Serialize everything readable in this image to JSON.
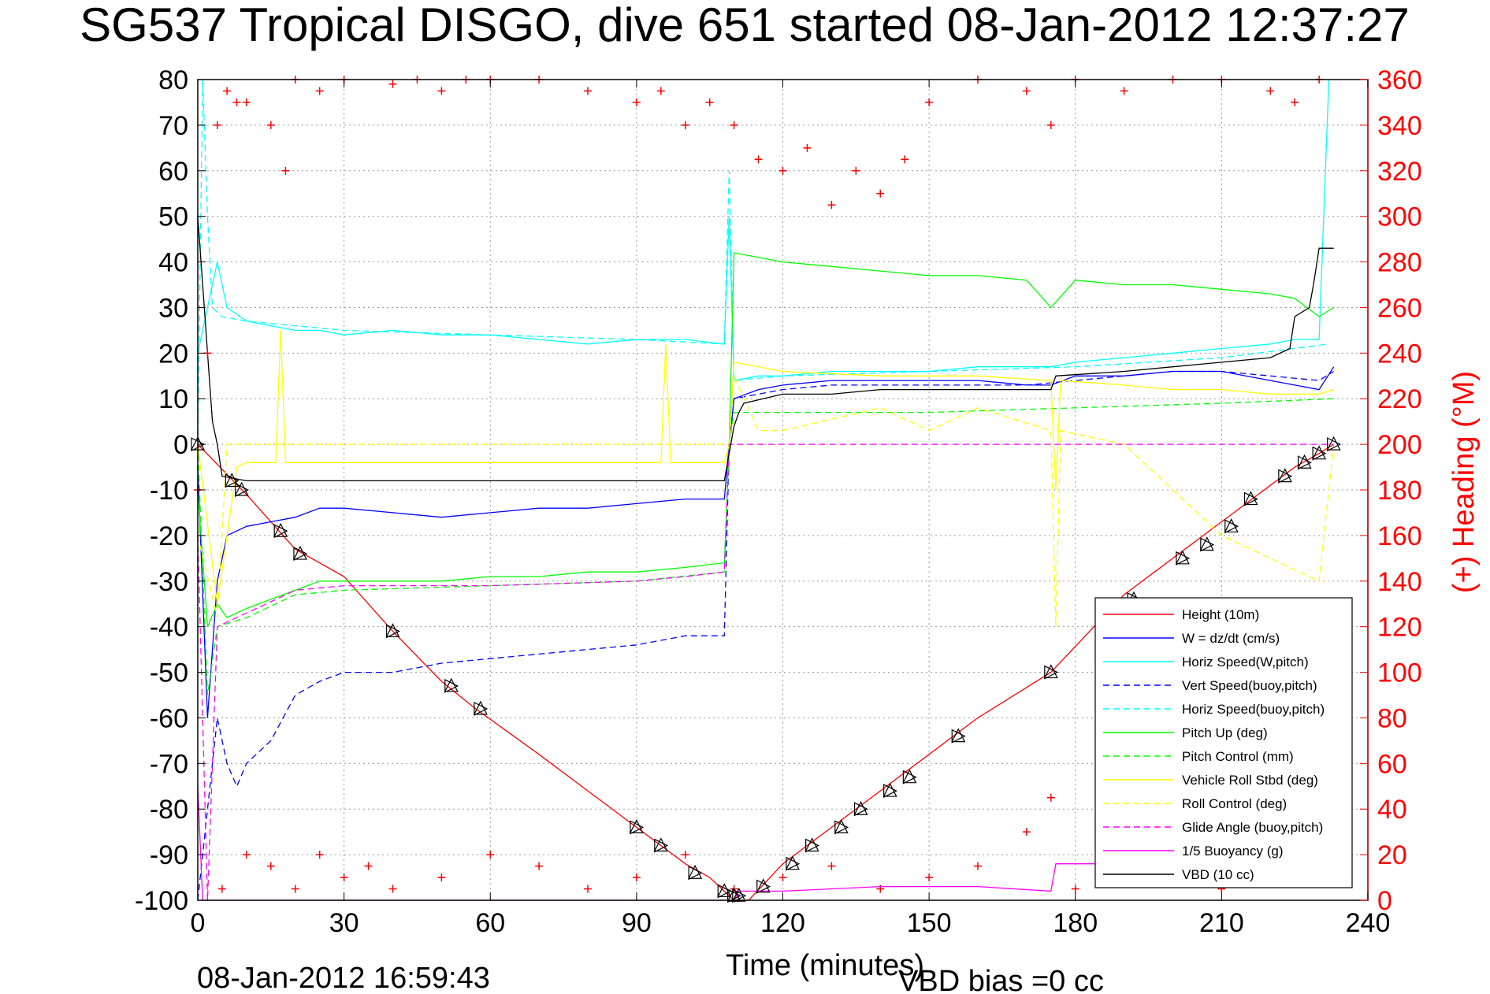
{
  "chart_data": {
    "type": "line",
    "title": "SG537 Tropical DISGO, dive 651 started 08-Jan-2012 12:37:27",
    "xlabel": "Time (minutes)",
    "ylabel_right": "(+) Heading (°M)",
    "xlim": [
      0,
      240
    ],
    "ylim": [
      -100,
      80
    ],
    "y2lim": [
      0,
      360
    ],
    "xticks": [
      "0",
      "30",
      "60",
      "90",
      "120",
      "150",
      "180",
      "210",
      "240"
    ],
    "yticks": [
      "80",
      "70",
      "60",
      "50",
      "40",
      "30",
      "20",
      "10",
      "0",
      "-10",
      "-20",
      "-30",
      "-40",
      "-50",
      "-60",
      "-70",
      "-80",
      "-90",
      "-100"
    ],
    "y2ticks": [
      "360",
      "340",
      "320",
      "300",
      "280",
      "260",
      "240",
      "220",
      "200",
      "180",
      "160",
      "140",
      "120",
      "100",
      "80",
      "60",
      "40",
      "20",
      "0"
    ],
    "grid": true,
    "legend_position": "lower-right",
    "footer_timestamp": "08-Jan-2012 16:59:43",
    "footer_vbd_bias": "VBD bias =0 cc",
    "series": [
      {
        "name": "Height (10m)",
        "color": "#ff0000",
        "style": "solid",
        "x": [
          0,
          10,
          20,
          30,
          40,
          50,
          57,
          70,
          80,
          90,
          100,
          105,
          108,
          110,
          113,
          120,
          130,
          140,
          150,
          160,
          175,
          190,
          200,
          210,
          220,
          225,
          230,
          233
        ],
        "y": [
          0,
          -11,
          -23,
          -29,
          -41,
          -52,
          -58,
          -68,
          -76,
          -84,
          -92,
          -95,
          -98,
          -100,
          -100,
          -92,
          -84,
          -76,
          -68,
          -60,
          -50,
          -33,
          -25,
          -17,
          -9,
          -5,
          -2,
          0
        ]
      },
      {
        "name": "W = dz/dt (cm/s)",
        "color": "#0000ff",
        "style": "solid",
        "x": [
          0,
          2,
          4,
          6,
          10,
          15,
          20,
          25,
          30,
          40,
          50,
          60,
          70,
          80,
          90,
          100,
          108,
          109,
          110,
          115,
          120,
          130,
          140,
          150,
          160,
          170,
          175,
          180,
          190,
          200,
          210,
          220,
          225,
          230,
          233
        ],
        "y": [
          -5,
          -60,
          -30,
          -20,
          -18,
          -17,
          -16,
          -14,
          -14,
          -15,
          -16,
          -15,
          -14,
          -14,
          -13,
          -12,
          -12,
          0,
          10,
          12,
          13,
          14,
          14,
          14,
          14,
          13,
          13,
          15,
          15,
          16,
          16,
          14,
          13,
          12,
          17
        ]
      },
      {
        "name": "Horiz Speed(W,pitch)",
        "color": "#00ffff",
        "style": "solid",
        "x": [
          0,
          2,
          4,
          6,
          10,
          15,
          20,
          25,
          30,
          40,
          50,
          60,
          70,
          80,
          90,
          100,
          108,
          109,
          110,
          115,
          120,
          130,
          140,
          150,
          160,
          170,
          175,
          180,
          190,
          200,
          210,
          220,
          225,
          230,
          232
        ],
        "y": [
          20,
          30,
          40,
          30,
          27,
          26,
          25,
          25,
          24,
          25,
          24,
          24,
          23,
          22,
          23,
          23,
          22,
          50,
          14,
          15,
          15,
          16,
          16,
          16,
          17,
          17,
          17,
          18,
          19,
          20,
          21,
          22,
          23,
          23,
          80
        ]
      },
      {
        "name": "Vert Speed(buoy,pitch)",
        "color": "#0000ff",
        "style": "dashed",
        "x": [
          0,
          2,
          4,
          6,
          8,
          10,
          15,
          20,
          25,
          30,
          40,
          50,
          60,
          70,
          80,
          90,
          100,
          108,
          109,
          110,
          120,
          130,
          140,
          150,
          160,
          170,
          180,
          190,
          200,
          210,
          220,
          230,
          233
        ],
        "y": [
          -100,
          -80,
          -60,
          -70,
          -75,
          -70,
          -65,
          -55,
          -52,
          -50,
          -50,
          -48,
          -47,
          -46,
          -45,
          -44,
          -42,
          -42,
          0,
          10,
          12,
          13,
          13,
          13,
          13,
          13,
          14,
          15,
          16,
          16,
          15,
          14,
          16
        ]
      },
      {
        "name": "Horiz Speed(buoy,pitch)",
        "color": "#00ffff",
        "style": "dashed",
        "x": [
          0,
          1,
          2,
          3,
          5,
          10,
          20,
          30,
          60,
          90,
          108,
          109,
          110,
          120,
          150,
          180,
          210,
          232
        ],
        "y": [
          0,
          80,
          50,
          30,
          28,
          27,
          26,
          25,
          24,
          23,
          22,
          60,
          14,
          15,
          16,
          17,
          19,
          22
        ]
      },
      {
        "name": "Pitch Up (deg)",
        "color": "#00ff00",
        "style": "solid",
        "x": [
          0,
          2,
          4,
          6,
          10,
          15,
          20,
          25,
          30,
          40,
          50,
          60,
          70,
          80,
          90,
          100,
          108,
          109,
          110,
          120,
          130,
          140,
          150,
          160,
          170,
          175,
          180,
          190,
          200,
          210,
          220,
          225,
          230,
          233
        ],
        "y": [
          -10,
          -40,
          -35,
          -38,
          -36,
          -34,
          -32,
          -30,
          -30,
          -30,
          -30,
          -29,
          -29,
          -28,
          -28,
          -27,
          -26,
          0,
          42,
          40,
          39,
          38,
          37,
          37,
          36,
          30,
          36,
          35,
          35,
          34,
          33,
          32,
          28,
          30
        ]
      },
      {
        "name": "Pitch Control (mm)",
        "color": "#00ff00",
        "style": "dashed",
        "x": [
          0,
          2,
          4,
          10,
          20,
          30,
          60,
          90,
          108,
          109,
          110,
          120,
          150,
          180,
          210,
          233
        ],
        "y": [
          0,
          -55,
          -40,
          -38,
          -33,
          -32,
          -31,
          -30,
          -28,
          0,
          7,
          7,
          7,
          8,
          9,
          10
        ]
      },
      {
        "name": "Vehicle Roll Stbd (deg)",
        "color": "#ffff00",
        "style": "solid",
        "x": [
          0,
          4,
          8,
          10,
          16,
          17,
          18,
          22,
          30,
          50,
          70,
          90,
          95,
          96,
          97,
          105,
          108,
          109,
          110,
          120,
          140,
          160,
          175,
          176,
          177,
          190,
          200,
          210,
          220,
          230,
          233
        ],
        "y": [
          0,
          -35,
          -5,
          -4,
          -4,
          25,
          -4,
          -4,
          -4,
          -4,
          -4,
          -4,
          -4,
          22,
          -4,
          -4,
          -4,
          0,
          18,
          16,
          15,
          15,
          14,
          -10,
          14,
          13,
          12,
          12,
          11,
          11,
          12
        ]
      },
      {
        "name": "Roll Control (deg)",
        "color": "#ffff00",
        "style": "dashed",
        "x": [
          0,
          4,
          6,
          10,
          20,
          30,
          60,
          90,
          108,
          109,
          110,
          115,
          120,
          140,
          150,
          160,
          175,
          176,
          177,
          190,
          210,
          230,
          233
        ],
        "y": [
          -20,
          -38,
          0,
          0,
          0,
          0,
          0,
          0,
          0,
          0,
          15,
          3,
          3,
          8,
          3,
          8,
          3,
          -40,
          3,
          0,
          -20,
          -30,
          0
        ]
      },
      {
        "name": "Glide Angle (buoy,pitch)",
        "color": "#ff00ff",
        "style": "dashed",
        "x": [
          0,
          2,
          4,
          10,
          20,
          30,
          60,
          90,
          100,
          108,
          109,
          110,
          120,
          150,
          180,
          210,
          233
        ],
        "y": [
          -20,
          -100,
          -40,
          -37,
          -32,
          -31,
          -31,
          -30,
          -29,
          -28,
          0,
          0,
          0,
          0,
          0,
          0,
          0
        ]
      },
      {
        "name": "1/5 Buoyancy (g)",
        "color": "#ff00ff",
        "style": "solid",
        "x": [
          0,
          1,
          2,
          3,
          5,
          110,
          111,
          120,
          140,
          160,
          175,
          176,
          180,
          190
        ],
        "y": [
          -75,
          -100,
          -100,
          -100,
          -100,
          -100,
          -98,
          -98,
          -97,
          -97,
          -98,
          -92,
          -92,
          -92
        ]
      },
      {
        "name": "VBD (10 cc)",
        "color": "#000000",
        "style": "solid",
        "x": [
          0,
          1,
          2,
          3,
          4,
          5,
          10,
          30,
          60,
          90,
          108,
          109,
          110,
          111,
          112,
          120,
          130,
          140,
          160,
          175,
          176,
          190,
          200,
          210,
          220,
          224,
          225,
          228,
          229,
          230,
          233
        ],
        "y": [
          50,
          35,
          20,
          5,
          0,
          -7,
          -8,
          -8,
          -8,
          -8,
          -8,
          -2,
          4,
          7,
          9,
          11,
          11,
          12,
          12,
          12,
          15,
          16,
          17,
          18,
          19,
          21,
          28,
          30,
          36,
          43,
          43
        ]
      },
      {
        "name": "Heading",
        "color": "#ff0000",
        "style": "markers",
        "axis": "right",
        "x": [
          0,
          2,
          4,
          6,
          8,
          10,
          15,
          18,
          20,
          25,
          30,
          40,
          45,
          50,
          55,
          60,
          70,
          80,
          90,
          95,
          100,
          105,
          110,
          115,
          120,
          125,
          130,
          135,
          140,
          145,
          150,
          160,
          170,
          175,
          180,
          190,
          200,
          210,
          220,
          225,
          230
        ],
        "y": [
          180,
          240,
          340,
          355,
          350,
          350,
          340,
          320,
          360,
          355,
          360,
          358,
          360,
          355,
          360,
          360,
          360,
          355,
          350,
          355,
          340,
          350,
          340,
          325,
          320,
          330,
          305,
          320,
          310,
          325,
          350,
          360,
          355,
          340,
          360,
          355,
          360,
          360,
          355,
          350,
          360
        ]
      }
    ],
    "legend": [
      "Height (10m)",
      "W = dz/dt (cm/s)",
      "Horiz Speed(W,pitch)",
      "Vert Speed(buoy,pitch)",
      "Horiz Speed(buoy,pitch)",
      "Pitch Up (deg)",
      "Pitch Control (mm)",
      "Vehicle Roll Stbd (deg)",
      "Roll Control (deg)",
      "Glide Angle (buoy,pitch)",
      "1/5 Buoyancy (g)",
      "VBD (10 cc)"
    ],
    "lower_heading": {
      "x": [
        5,
        10,
        15,
        20,
        25,
        30,
        35,
        40,
        50,
        60,
        70,
        80,
        90,
        100,
        110,
        120,
        130,
        140,
        150,
        160,
        170,
        175,
        180,
        190,
        200,
        210
      ],
      "y": [
        5,
        20,
        15,
        5,
        20,
        10,
        15,
        5,
        10,
        20,
        15,
        5,
        10,
        20,
        5,
        10,
        15,
        5,
        10,
        15,
        30,
        45,
        5,
        15,
        10,
        5
      ]
    },
    "markers": {
      "x": [
        0,
        7,
        9,
        17,
        21,
        40,
        52,
        58,
        90,
        95,
        102,
        108,
        110,
        111,
        116,
        122,
        126,
        132,
        136,
        142,
        146,
        156,
        175,
        192,
        202,
        207,
        212,
        216,
        223,
        227,
        230,
        233
      ],
      "y": [
        0,
        -8,
        -10,
        -19,
        -24,
        -41,
        -53,
        -58,
        -84,
        -88,
        -94,
        -98,
        -99,
        -99,
        -97,
        -92,
        -88,
        -84,
        -80,
        -76,
        -73,
        -64,
        -50,
        -34,
        -25,
        -22,
        -18,
        -12,
        -7,
        -4,
        -2,
        0
      ]
    }
  }
}
